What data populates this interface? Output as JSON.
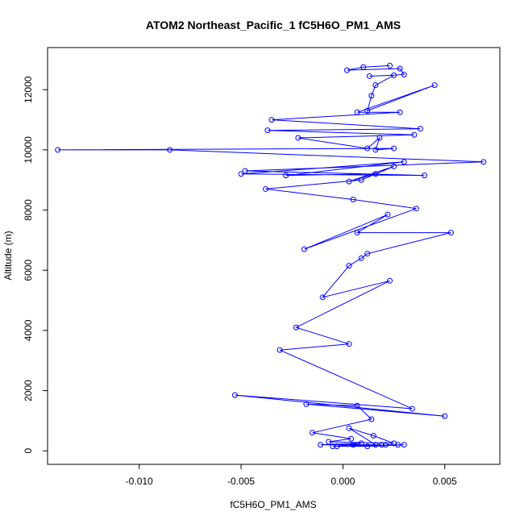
{
  "chart_data": {
    "type": "line",
    "title": "ATOM2 Northeast_Pacific_1 fC5H6O_PM1_AMS",
    "xlabel": "fC5H6O_PM1_AMS",
    "ylabel": "Altitude (m)",
    "xlim": [
      -0.0145,
      0.0077
    ],
    "ylim": [
      -450,
      13400
    ],
    "xticks": [
      -0.01,
      -0.005,
      0.0,
      0.005
    ],
    "xtick_labels": [
      "-0.010",
      "-0.005",
      "0.000",
      "0.005"
    ],
    "yticks": [
      0,
      2000,
      4000,
      6000,
      8000,
      10000,
      12000
    ],
    "ytick_labels": [
      "0",
      "2000",
      "4000",
      "6000",
      "8000",
      "10000",
      "12000"
    ],
    "grid": false,
    "series_color": "#0000ff",
    "markers": "open-circle",
    "series": [
      {
        "x": [
          0.0023,
          0.001,
          0.0002,
          0.0028,
          0.003,
          0.0013,
          0.0025,
          0.0016,
          0.0014,
          0.0012,
          0.0045,
          0.0007,
          0.0028,
          -0.0035,
          0.0038,
          -0.0037,
          0.0035,
          -0.0022,
          0.0012,
          0.0018,
          0.0016,
          0.0025,
          -0.014,
          -0.0085,
          0.0069,
          -0.0048,
          0.004,
          -0.005,
          0.003,
          -0.0028,
          0.0016,
          0.0003,
          0.0025,
          0.0009,
          -0.0038,
          0.0005,
          0.0036,
          -0.0019,
          0.0022,
          0.0007,
          0.0053,
          0.0012,
          0.0009,
          0.0003,
          -0.001,
          0.0023,
          -0.0023,
          0.0003,
          -0.0031,
          0.0034,
          -0.0053,
          0.005,
          -0.0018,
          0.0007,
          0.0014,
          -0.0015,
          0.0004,
          -0.0007,
          0.0025,
          0.0015,
          0.0003,
          0.0016,
          0.0005,
          -0.0011,
          0.0009,
          -0.0003,
          0.0027,
          0.0021,
          0.003,
          0.0012,
          -0.0005,
          0.0019
        ],
        "y": [
          12800,
          12750,
          12650,
          12700,
          12500,
          12450,
          12480,
          12150,
          11800,
          11300,
          12150,
          11250,
          11250,
          11000,
          10700,
          10650,
          10500,
          10400,
          10050,
          10400,
          10000,
          10050,
          10000,
          10000,
          9600,
          9300,
          9150,
          9200,
          9600,
          9150,
          9200,
          8950,
          9450,
          9000,
          8700,
          8350,
          8050,
          6700,
          7850,
          7250,
          7250,
          6550,
          6400,
          6150,
          5100,
          5650,
          4100,
          3550,
          3350,
          1400,
          1850,
          1150,
          1550,
          1500,
          1050,
          600,
          400,
          300,
          250,
          500,
          750,
          200,
          200,
          200,
          250,
          150,
          200,
          200,
          200,
          150,
          150,
          200
        ]
      }
    ]
  }
}
